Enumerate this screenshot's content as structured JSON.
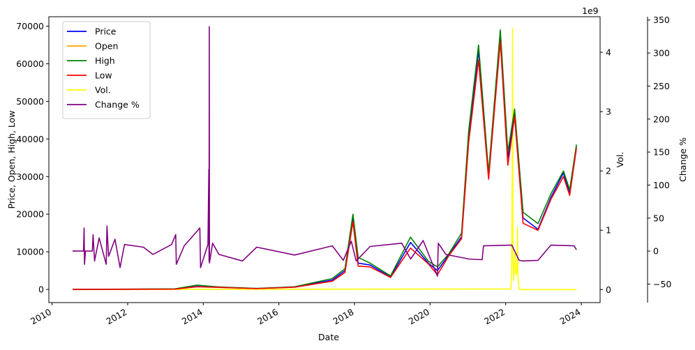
{
  "chart_data": {
    "type": "line",
    "x_axis": {
      "label": "Date",
      "ticks": [
        "2010",
        "2012",
        "2014",
        "2016",
        "2018",
        "2020",
        "2022",
        "2024"
      ],
      "range": [
        "2009-12-01",
        "2024-07-01"
      ]
    },
    "y_left": {
      "label": "Price, Open, High, Low",
      "ticks": [
        "0",
        "10000",
        "20000",
        "30000",
        "40000",
        "50000",
        "60000",
        "70000"
      ],
      "range": [
        -3500,
        72500
      ]
    },
    "y_vol": {
      "label": "Vol.",
      "multiplier": "1e9",
      "ticks": [
        "0",
        "1",
        "2",
        "3",
        "4"
      ],
      "range": [
        -0.22,
        4.6
      ]
    },
    "y_change": {
      "label": "Change %",
      "ticks": [
        "−50",
        "0",
        "50",
        "100",
        "150",
        "200",
        "250",
        "300",
        "350"
      ],
      "range": [
        -78,
        355
      ]
    },
    "legend": {
      "position": "top-left",
      "entries": [
        {
          "name": "Price",
          "color": "#0000ff"
        },
        {
          "name": "Open",
          "color": "#ffa500"
        },
        {
          "name": "High",
          "color": "#008000"
        },
        {
          "name": "Low",
          "color": "#ff0000"
        },
        {
          "name": "Vol.",
          "color": "#ffff00"
        },
        {
          "name": "Change %",
          "color": "#800080"
        }
      ]
    },
    "series": [
      {
        "name": "Price",
        "axis": "left",
        "color": "#0000ff",
        "points": [
          [
            "2010-07-18",
            0
          ],
          [
            "2013-04-01",
            100
          ],
          [
            "2013-11-01",
            800
          ],
          [
            "2014-06-01",
            600
          ],
          [
            "2015-06-01",
            250
          ],
          [
            "2016-06-01",
            650
          ],
          [
            "2017-06-01",
            2500
          ],
          [
            "2017-10-01",
            5000
          ],
          [
            "2017-12-17",
            19000
          ],
          [
            "2018-02-06",
            7000
          ],
          [
            "2018-06-01",
            6500
          ],
          [
            "2018-12-15",
            3300
          ],
          [
            "2019-06-26",
            12500
          ],
          [
            "2019-12-15",
            7000
          ],
          [
            "2020-03-12",
            5000
          ],
          [
            "2020-07-01",
            9200
          ],
          [
            "2020-11-01",
            14000
          ],
          [
            "2021-01-08",
            41000
          ],
          [
            "2021-04-14",
            63500
          ],
          [
            "2021-07-20",
            29800
          ],
          [
            "2021-11-10",
            68000
          ],
          [
            "2022-01-22",
            35000
          ],
          [
            "2022-03-28",
            47000
          ],
          [
            "2022-06-18",
            19000
          ],
          [
            "2022-11-09",
            16000
          ],
          [
            "2023-03-15",
            24500
          ],
          [
            "2023-07-13",
            31000
          ],
          [
            "2023-09-11",
            25500
          ],
          [
            "2023-11-15",
            38000
          ]
        ]
      },
      {
        "name": "High",
        "axis": "left",
        "color": "#008000",
        "points": [
          [
            "2010-07-18",
            0
          ],
          [
            "2013-04-01",
            150
          ],
          [
            "2013-11-01",
            1150
          ],
          [
            "2014-06-01",
            650
          ],
          [
            "2015-06-01",
            260
          ],
          [
            "2016-06-01",
            700
          ],
          [
            "2017-06-01",
            2900
          ],
          [
            "2017-10-01",
            5500
          ],
          [
            "2017-12-17",
            20000
          ],
          [
            "2018-02-06",
            8500
          ],
          [
            "2018-06-01",
            7000
          ],
          [
            "2018-12-15",
            3600
          ],
          [
            "2019-06-26",
            13900
          ],
          [
            "2019-12-15",
            7500
          ],
          [
            "2020-03-12",
            6000
          ],
          [
            "2020-07-01",
            9500
          ],
          [
            "2020-11-01",
            15000
          ],
          [
            "2021-01-08",
            42000
          ],
          [
            "2021-04-14",
            65000
          ],
          [
            "2021-07-20",
            31000
          ],
          [
            "2021-11-10",
            69000
          ],
          [
            "2022-01-22",
            36500
          ],
          [
            "2022-03-28",
            48000
          ],
          [
            "2022-06-18",
            20500
          ],
          [
            "2022-11-09",
            17500
          ],
          [
            "2023-03-15",
            25500
          ],
          [
            "2023-07-13",
            31500
          ],
          [
            "2023-09-11",
            26500
          ],
          [
            "2023-11-15",
            38500
          ]
        ]
      },
      {
        "name": "Low",
        "axis": "left",
        "color": "#ff0000",
        "points": [
          [
            "2010-07-18",
            0
          ],
          [
            "2013-04-01",
            80
          ],
          [
            "2013-11-01",
            700
          ],
          [
            "2014-06-01",
            550
          ],
          [
            "2015-06-01",
            200
          ],
          [
            "2016-06-01",
            600
          ],
          [
            "2017-06-01",
            2200
          ],
          [
            "2017-10-01",
            4500
          ],
          [
            "2017-12-17",
            18000
          ],
          [
            "2018-02-06",
            6200
          ],
          [
            "2018-06-01",
            6000
          ],
          [
            "2018-12-15",
            3200
          ],
          [
            "2019-06-26",
            11000
          ],
          [
            "2019-12-15",
            6800
          ],
          [
            "2020-03-12",
            3900
          ],
          [
            "2020-07-01",
            9000
          ],
          [
            "2020-11-01",
            13500
          ],
          [
            "2021-01-08",
            39000
          ],
          [
            "2021-04-14",
            61000
          ],
          [
            "2021-07-20",
            29300
          ],
          [
            "2021-11-10",
            66000
          ],
          [
            "2022-01-22",
            33000
          ],
          [
            "2022-03-28",
            46000
          ],
          [
            "2022-06-18",
            17600
          ],
          [
            "2022-11-09",
            15700
          ],
          [
            "2023-03-15",
            24000
          ],
          [
            "2023-07-13",
            30000
          ],
          [
            "2023-09-11",
            25000
          ],
          [
            "2023-11-15",
            37500
          ]
        ]
      },
      {
        "name": "Vol.",
        "axis": "vol",
        "color": "#ffff00",
        "points": [
          [
            "2010-07-18",
            0
          ],
          [
            "2022-02-20",
            0.01
          ],
          [
            "2022-02-27",
            0.3
          ],
          [
            "2022-03-05",
            2.0
          ],
          [
            "2022-03-08",
            4.4
          ],
          [
            "2022-03-12",
            0.5
          ],
          [
            "2022-03-20",
            0.15
          ],
          [
            "2022-03-30",
            0.6
          ],
          [
            "2022-04-10",
            0.25
          ],
          [
            "2022-04-20",
            0.3
          ],
          [
            "2022-04-25",
            1.05
          ],
          [
            "2022-04-29",
            0.25
          ],
          [
            "2022-05-08",
            0.05
          ],
          [
            "2022-05-15",
            0
          ],
          [
            "2023-11-15",
            0
          ]
        ]
      },
      {
        "name": "Change %",
        "axis": "change",
        "color": "#800080",
        "points": [
          [
            "2010-07-18",
            0
          ],
          [
            "2010-11-01",
            0
          ],
          [
            "2010-11-06",
            35
          ],
          [
            "2010-11-10",
            -20
          ],
          [
            "2010-11-20",
            0
          ],
          [
            "2011-01-25",
            0
          ],
          [
            "2011-02-01",
            25
          ],
          [
            "2011-02-15",
            -15
          ],
          [
            "2011-04-01",
            20
          ],
          [
            "2011-06-08",
            -20
          ],
          [
            "2011-06-15",
            38
          ],
          [
            "2011-07-01",
            -8
          ],
          [
            "2011-09-01",
            18
          ],
          [
            "2011-10-20",
            -25
          ],
          [
            "2011-12-01",
            10
          ],
          [
            "2012-06-01",
            6
          ],
          [
            "2012-09-01",
            -5
          ],
          [
            "2013-03-01",
            10
          ],
          [
            "2013-04-10",
            25
          ],
          [
            "2013-04-16",
            -20
          ],
          [
            "2013-07-01",
            8
          ],
          [
            "2013-11-29",
            35
          ],
          [
            "2013-12-06",
            -25
          ],
          [
            "2014-02-15",
            10
          ],
          [
            "2014-02-24",
            124
          ],
          [
            "2014-02-26",
            -15
          ],
          [
            "2014-02-28",
            340
          ],
          [
            "2014-03-02",
            -18
          ],
          [
            "2014-04-01",
            12
          ],
          [
            "2014-06-01",
            -5
          ],
          [
            "2015-01-14",
            -15
          ],
          [
            "2015-06-01",
            6
          ],
          [
            "2016-06-01",
            -6
          ],
          [
            "2017-06-01",
            8
          ],
          [
            "2017-09-15",
            -14
          ],
          [
            "2017-12-01",
            15
          ],
          [
            "2018-01-17",
            -15
          ],
          [
            "2018-06-01",
            7
          ],
          [
            "2019-04-02",
            12
          ],
          [
            "2019-06-27",
            -12
          ],
          [
            "2019-10-26",
            16
          ],
          [
            "2020-03-12",
            -38
          ],
          [
            "2020-03-20",
            12
          ],
          [
            "2020-06-01",
            -5
          ],
          [
            "2021-01-11",
            -12
          ],
          [
            "2021-05-19",
            -13
          ],
          [
            "2021-06-01",
            8
          ],
          [
            "2022-03-01",
            9
          ],
          [
            "2022-05-10",
            -14
          ],
          [
            "2022-06-13",
            -15
          ],
          [
            "2022-11-09",
            -14
          ],
          [
            "2023-03-13",
            9
          ],
          [
            "2023-10-24",
            8
          ],
          [
            "2023-11-15",
            2
          ]
        ]
      }
    ]
  }
}
